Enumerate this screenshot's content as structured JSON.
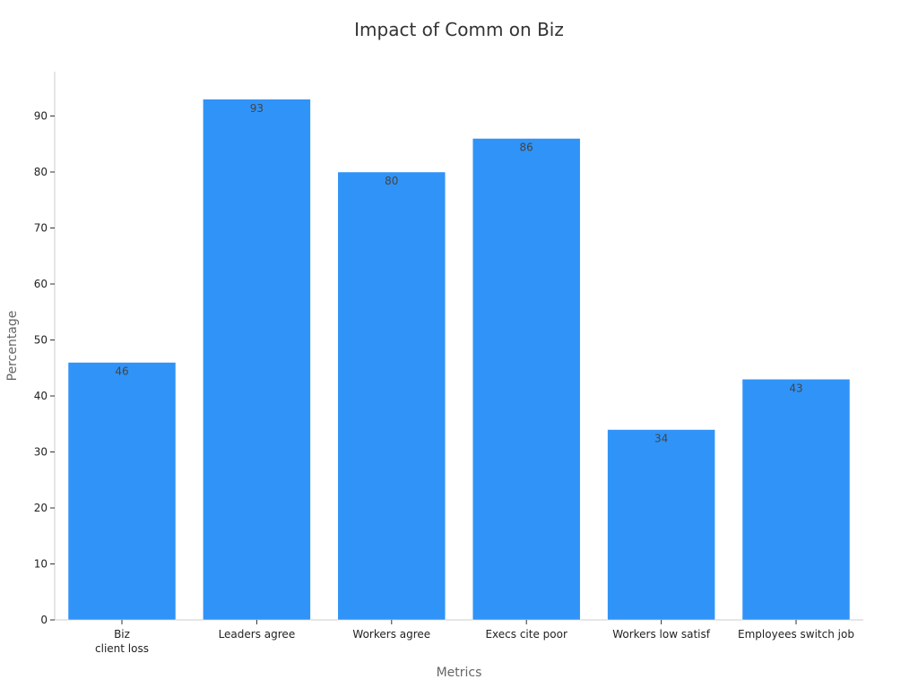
{
  "chart_data": {
    "type": "bar",
    "title": "Impact of Comm on Biz",
    "xlabel": "Metrics",
    "ylabel": "Percentage",
    "categories": [
      [
        "Biz",
        "client loss"
      ],
      [
        "Leaders agree"
      ],
      [
        "Workers agree"
      ],
      [
        "Execs cite poor"
      ],
      [
        "Workers low satisf"
      ],
      [
        "Employees switch job"
      ]
    ],
    "values": [
      46,
      93,
      80,
      86,
      34,
      43
    ],
    "ylim": [
      0,
      98
    ],
    "yticks": [
      0,
      10,
      20,
      30,
      40,
      50,
      60,
      70,
      80,
      90
    ],
    "grid": false,
    "legend": "none",
    "bar_color": "#3093f7"
  }
}
